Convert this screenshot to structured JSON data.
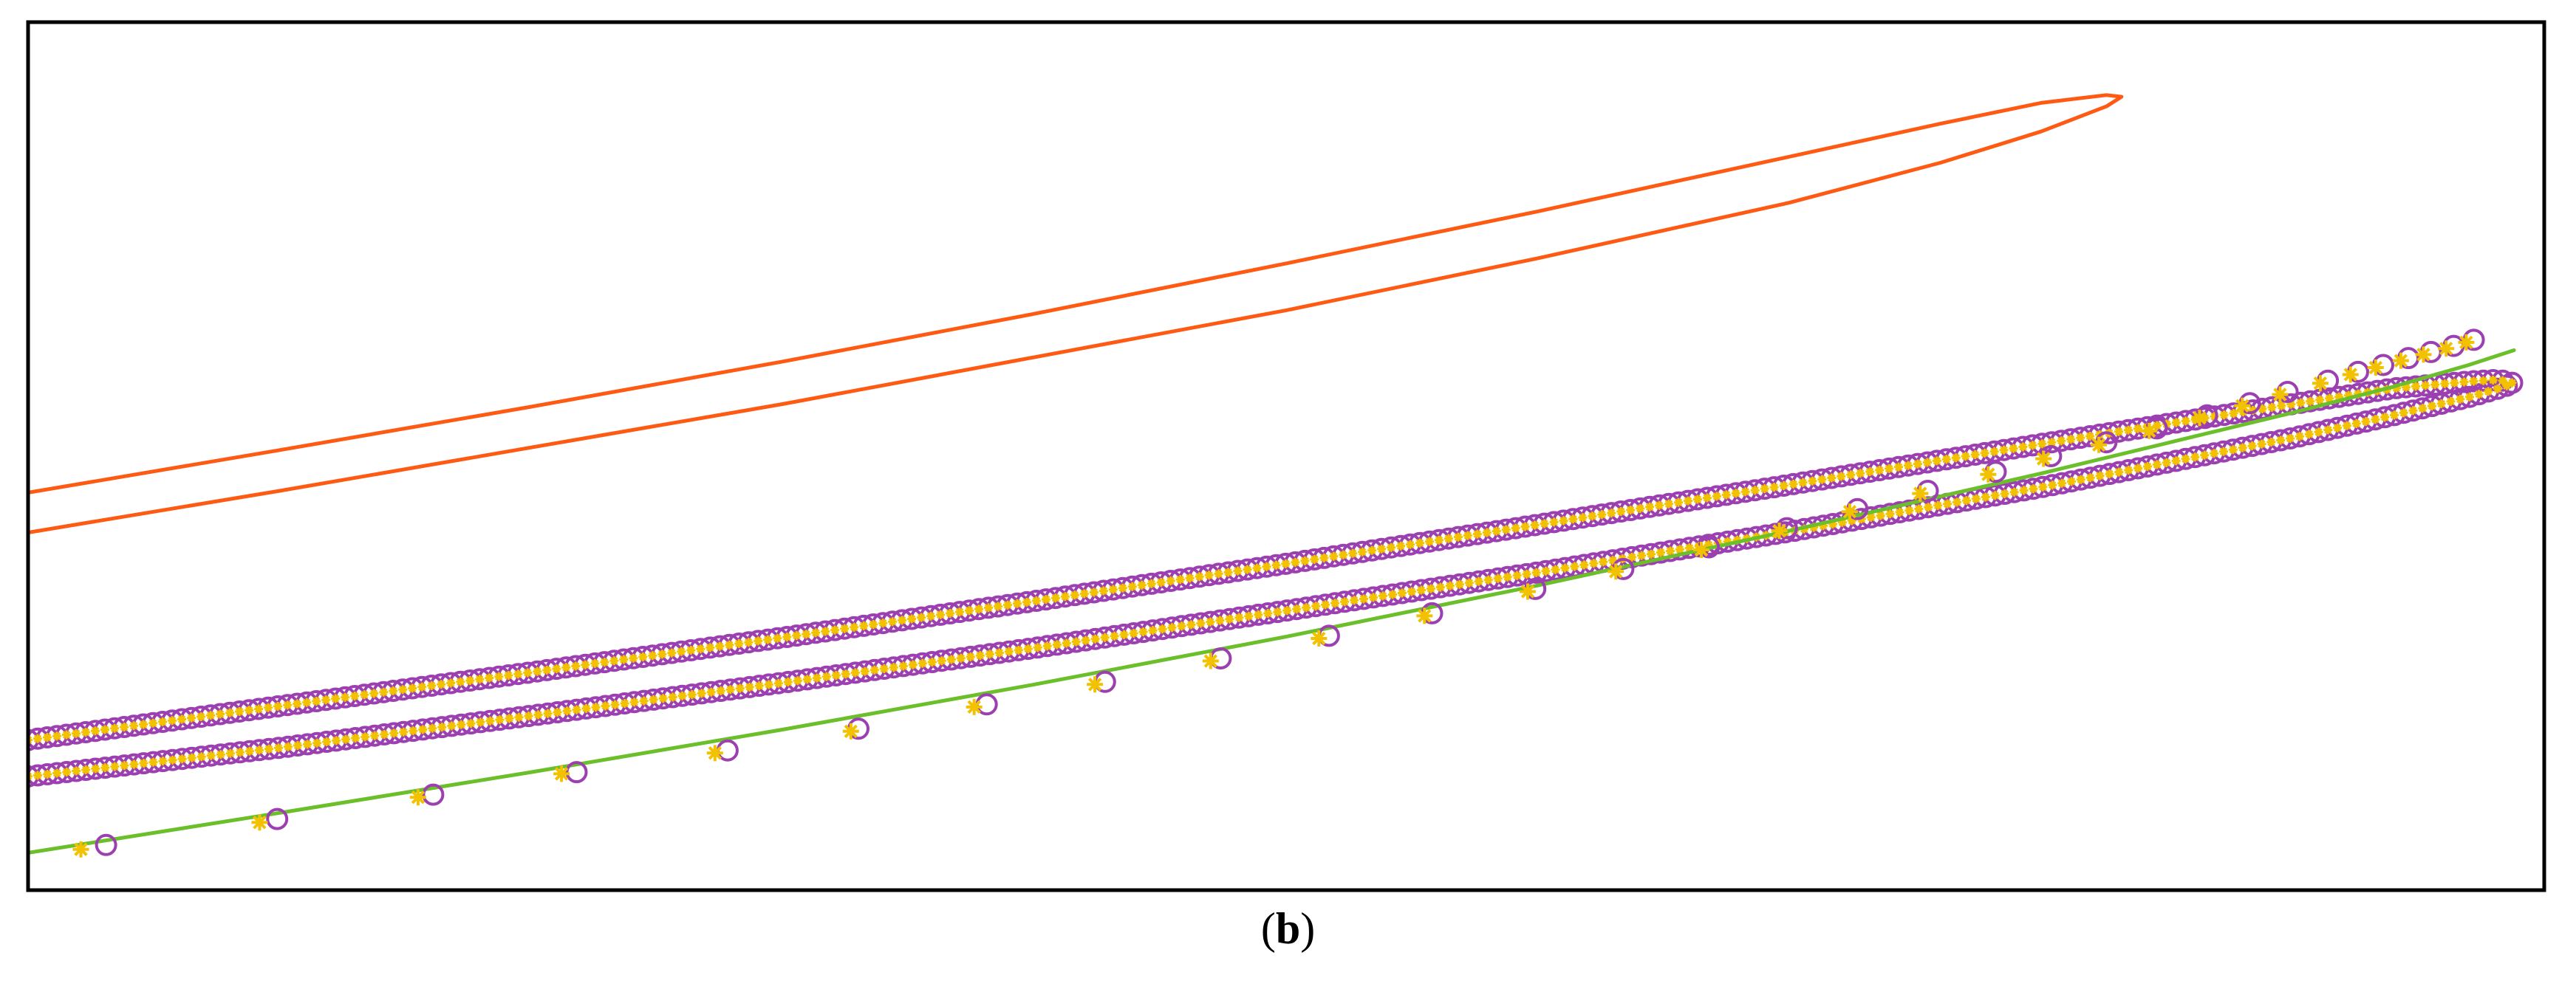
{
  "caption": {
    "open": "(",
    "letter": "b",
    "close": ")"
  },
  "chart_data": {
    "type": "line",
    "title": "",
    "xlabel": "",
    "ylabel": "",
    "xlim": [
      0,
      1
    ],
    "ylim": [
      0,
      1
    ],
    "grid": false,
    "legend": "none",
    "colors": {
      "orange": "#ff5a14",
      "green": "#6bbf2a",
      "purple": "#9c3fb0",
      "yellow": "#f2c200",
      "frame": "#000000"
    },
    "series": [
      {
        "color": "orange",
        "style": "line",
        "x": [
          0.0,
          0.1,
          0.2,
          0.3,
          0.4,
          0.5,
          0.6,
          0.7,
          0.76,
          0.8,
          0.826,
          0.832,
          0.826,
          0.8,
          0.76,
          0.7,
          0.6,
          0.5,
          0.4,
          0.3,
          0.2,
          0.1,
          0.0
        ],
        "y": [
          0.412,
          0.46,
          0.51,
          0.56,
          0.614,
          0.668,
          0.728,
          0.792,
          0.838,
          0.874,
          0.903,
          0.914,
          0.916,
          0.907,
          0.883,
          0.845,
          0.782,
          0.722,
          0.664,
          0.609,
          0.557,
          0.507,
          0.458
        ]
      },
      {
        "color": "purple",
        "style": "dense-markers",
        "marker": "circle",
        "x": [
          0.0,
          0.1,
          0.2,
          0.3,
          0.4,
          0.5,
          0.6,
          0.7,
          0.8,
          0.9,
          0.94,
          0.97,
          0.982,
          0.988,
          0.982,
          0.97,
          0.94,
          0.9,
          0.8,
          0.7,
          0.6,
          0.5,
          0.4,
          0.3,
          0.2,
          0.1,
          0.0
        ],
        "y": [
          0.131,
          0.164,
          0.201,
          0.239,
          0.279,
          0.322,
          0.366,
          0.413,
          0.464,
          0.521,
          0.547,
          0.568,
          0.578,
          0.584,
          0.588,
          0.586,
          0.578,
          0.56,
          0.514,
          0.467,
          0.421,
          0.376,
          0.333,
          0.291,
          0.251,
          0.212,
          0.173
        ]
      },
      {
        "color": "yellow",
        "style": "dense-markers",
        "marker": "star",
        "x": [
          0.0,
          0.1,
          0.2,
          0.3,
          0.4,
          0.5,
          0.6,
          0.7,
          0.8,
          0.9,
          0.94,
          0.97,
          0.982,
          0.988,
          0.982,
          0.97,
          0.94,
          0.9,
          0.8,
          0.7,
          0.6,
          0.5,
          0.4,
          0.3,
          0.2,
          0.1,
          0.0
        ],
        "y": [
          0.131,
          0.164,
          0.201,
          0.239,
          0.279,
          0.322,
          0.366,
          0.413,
          0.464,
          0.521,
          0.547,
          0.568,
          0.578,
          0.584,
          0.588,
          0.586,
          0.578,
          0.56,
          0.514,
          0.467,
          0.421,
          0.376,
          0.333,
          0.291,
          0.251,
          0.212,
          0.173
        ]
      },
      {
        "color": "green",
        "style": "line",
        "x": [
          0.0,
          0.1,
          0.2,
          0.3,
          0.4,
          0.5,
          0.6,
          0.7,
          0.8,
          0.86,
          0.9,
          0.94,
          0.97,
          0.988
        ],
        "y": [
          0.043,
          0.089,
          0.136,
          0.185,
          0.237,
          0.292,
          0.351,
          0.414,
          0.48,
          0.522,
          0.55,
          0.58,
          0.605,
          0.622
        ]
      },
      {
        "color": "purple",
        "style": "markers",
        "marker": "circle",
        "x": [
          0.031,
          0.099,
          0.161,
          0.218,
          0.278,
          0.33,
          0.381,
          0.428,
          0.474,
          0.517,
          0.558,
          0.599,
          0.634,
          0.668,
          0.699,
          0.727,
          0.755,
          0.782,
          0.804,
          0.826,
          0.846,
          0.866,
          0.883,
          0.898,
          0.914,
          0.926,
          0.936,
          0.946,
          0.955,
          0.964,
          0.972
        ],
        "y": [
          0.052,
          0.082,
          0.11,
          0.136,
          0.161,
          0.186,
          0.214,
          0.24,
          0.267,
          0.293,
          0.319,
          0.347,
          0.37,
          0.395,
          0.417,
          0.439,
          0.46,
          0.482,
          0.5,
          0.516,
          0.532,
          0.547,
          0.561,
          0.574,
          0.587,
          0.597,
          0.605,
          0.613,
          0.62,
          0.627,
          0.634
        ]
      },
      {
        "color": "yellow",
        "style": "markers",
        "marker": "star",
        "x": [
          0.021,
          0.092,
          0.155,
          0.212,
          0.273,
          0.327,
          0.376,
          0.424,
          0.47,
          0.513,
          0.555,
          0.596,
          0.631,
          0.665,
          0.696,
          0.724,
          0.752,
          0.779,
          0.801,
          0.823,
          0.843,
          0.863,
          0.88,
          0.895,
          0.911,
          0.923,
          0.933,
          0.943,
          0.952,
          0.961,
          0.969
        ],
        "y": [
          0.047,
          0.078,
          0.107,
          0.134,
          0.158,
          0.183,
          0.211,
          0.237,
          0.264,
          0.29,
          0.316,
          0.344,
          0.367,
          0.392,
          0.414,
          0.436,
          0.457,
          0.479,
          0.497,
          0.513,
          0.529,
          0.544,
          0.558,
          0.571,
          0.584,
          0.594,
          0.602,
          0.61,
          0.617,
          0.624,
          0.631
        ]
      }
    ]
  }
}
